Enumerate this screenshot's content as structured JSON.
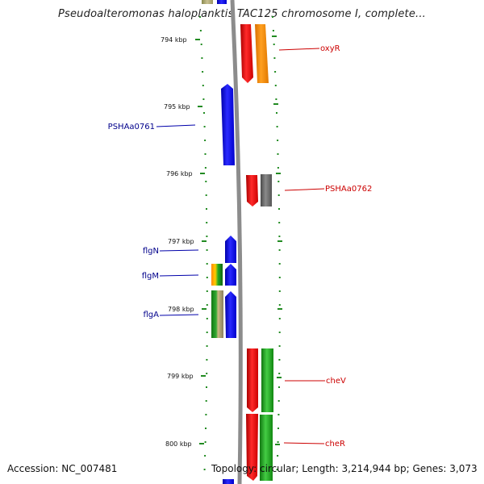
{
  "title": "Pseudoalteromonas haloplanktis TAC125 chromosome I, complete...",
  "footer": {
    "accession": "Accession: NC_007481",
    "topology": "Topology: circular; Length: 3,214,944 bp; Genes: 3,073"
  },
  "scale_labels": [
    "794 kbp",
    "795 kbp",
    "796 kbp",
    "797 kbp",
    "798 kbp",
    "799 kbp",
    "800 kbp"
  ],
  "gene_labels_left": [
    {
      "key": "PSHAa0761",
      "text": "PSHAa0761",
      "color": "#00008b"
    },
    {
      "key": "flgN",
      "text": "flgN",
      "color": "#00008b"
    },
    {
      "key": "flgM",
      "text": "flgM",
      "color": "#00008b"
    },
    {
      "key": "flgA",
      "text": "flgA",
      "color": "#00008b"
    }
  ],
  "gene_labels_right": [
    {
      "key": "oxyR",
      "text": "oxyR",
      "color": "#cc0000"
    },
    {
      "key": "PSHAa0762",
      "text": "PSHAa0762",
      "color": "#cc0000"
    },
    {
      "key": "cheV",
      "text": "cheV",
      "color": "#cc0000"
    },
    {
      "key": "cheR",
      "text": "cheR",
      "color": "#cc0000"
    }
  ],
  "colors": {
    "forward_gene": "#0000ff",
    "reverse_gene": "#ff0000",
    "orange_feature": "#ff8c00",
    "grey_feature": "#707070",
    "green_feature": "#22aa22",
    "backbone": "#8c8c8c",
    "tick": "#228b22"
  }
}
